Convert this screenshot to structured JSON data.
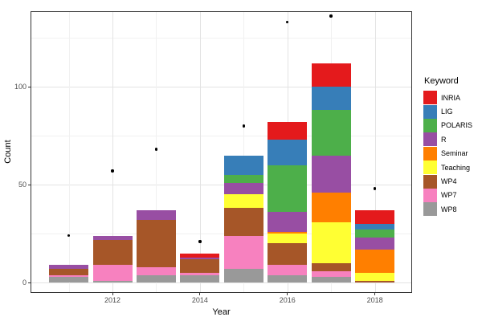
{
  "chart_data": {
    "type": "bar",
    "stacked": true,
    "title": "",
    "xlabel": "Year",
    "ylabel": "Count",
    "legend_title": "Keyword",
    "legend_position": "right",
    "grid": true,
    "categories": [
      2011,
      2012,
      2013,
      2014,
      2015,
      2016,
      2017,
      2018
    ],
    "series": [
      {
        "name": "INRIA",
        "color": "#E41A1C",
        "values": [
          0,
          0,
          0,
          2,
          0,
          9,
          12,
          7
        ]
      },
      {
        "name": "LIG",
        "color": "#377EB8",
        "values": [
          0,
          0,
          0,
          0,
          10,
          13,
          12,
          3
        ]
      },
      {
        "name": "POLARIS",
        "color": "#4DAF4A",
        "values": [
          0,
          0,
          0,
          0,
          4,
          24,
          23,
          4
        ]
      },
      {
        "name": "R",
        "color": "#984EA3",
        "values": [
          2,
          2,
          5,
          1,
          6,
          10,
          19,
          6
        ]
      },
      {
        "name": "Seminar",
        "color": "#FF7F00",
        "values": [
          0,
          0,
          0,
          0,
          0,
          1,
          15,
          12
        ]
      },
      {
        "name": "Teaching",
        "color": "#FFFF33",
        "values": [
          0,
          0,
          0,
          0,
          7,
          5,
          21,
          4
        ]
      },
      {
        "name": "WP4",
        "color": "#A65628",
        "values": [
          3,
          13,
          24,
          7,
          14,
          11,
          4,
          1
        ]
      },
      {
        "name": "WP7",
        "color": "#F781BF",
        "values": [
          1,
          8,
          4,
          1,
          17,
          5,
          3,
          0
        ]
      },
      {
        "name": "WP8",
        "color": "#999999",
        "values": [
          3,
          1,
          4,
          4,
          7,
          4,
          3,
          0
        ]
      }
    ],
    "scatter_points": {
      "color": "#000000",
      "values": [
        24,
        57,
        68,
        21,
        80,
        133,
        136,
        48
      ]
    },
    "y_ticks": [
      0,
      50,
      100
    ],
    "y_tick_labels": [
      "0",
      "50",
      "100"
    ],
    "y_minor_gridlines": [
      25,
      75,
      125
    ],
    "x_ticks": [
      2012,
      2014,
      2016,
      2018
    ],
    "x_tick_labels": [
      "2012",
      "2014",
      "2016",
      "2018"
    ],
    "x_minor_gridline_years": [
      2011,
      2013,
      2015,
      2017
    ],
    "ylim": [
      -5.2,
      138.5
    ]
  }
}
